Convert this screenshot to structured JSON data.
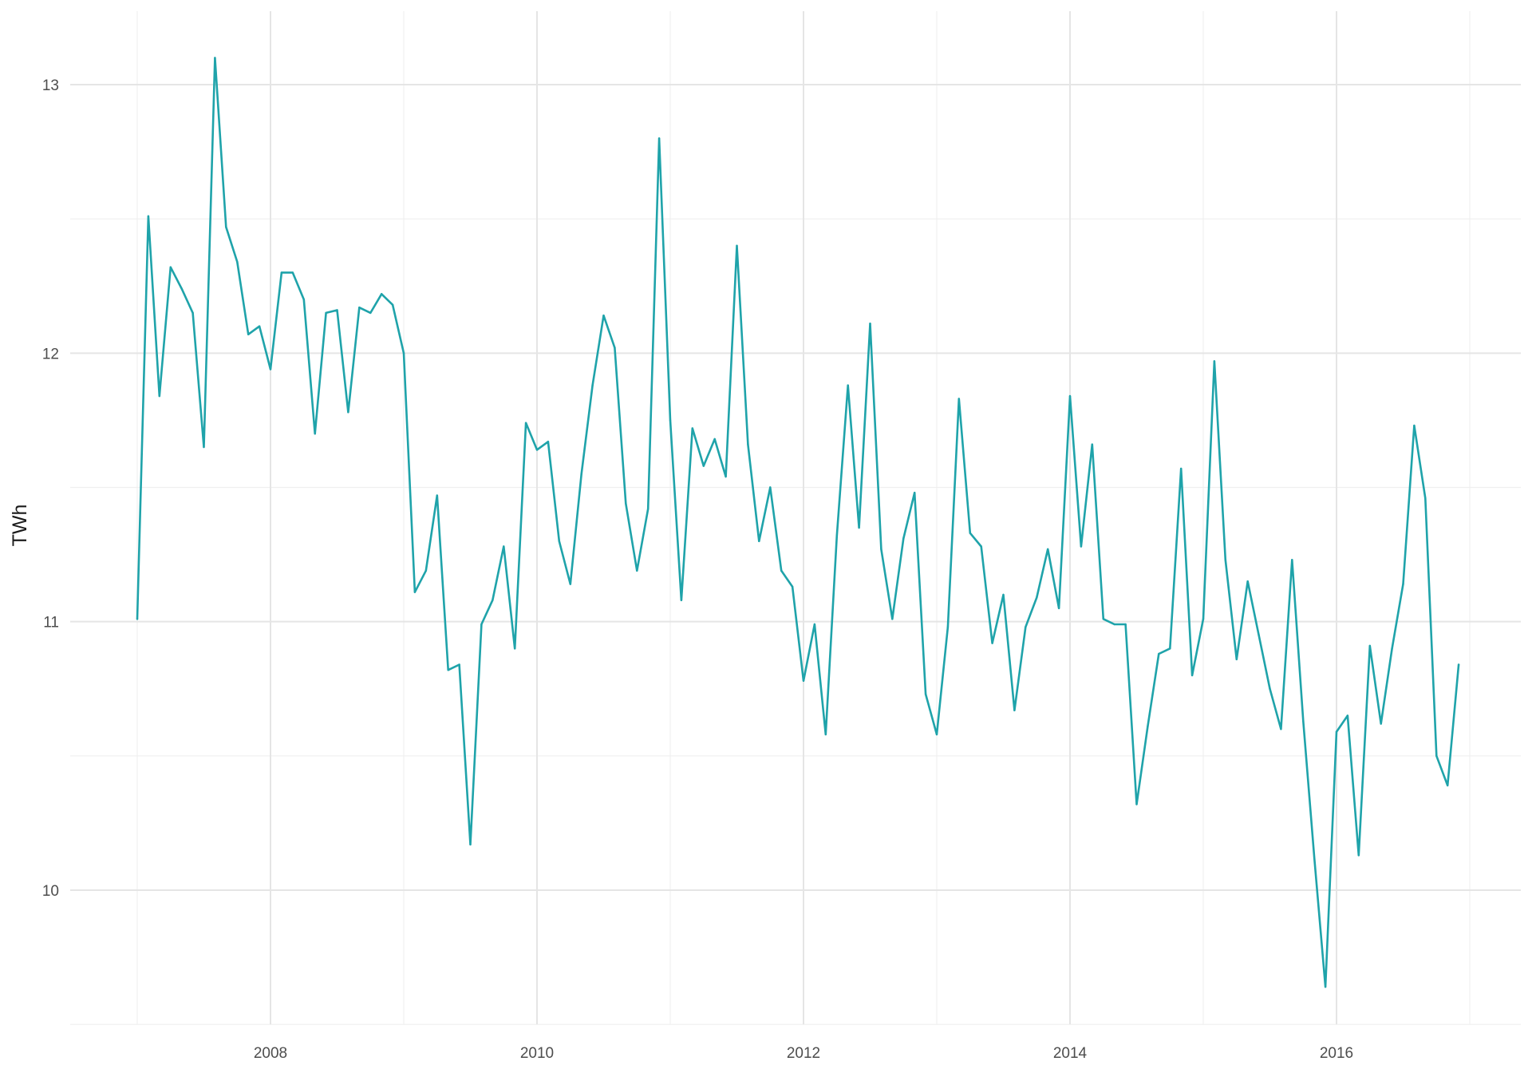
{
  "chart_data": {
    "type": "line",
    "title": "",
    "xlabel": "",
    "ylabel": "TWh",
    "x_ticks": [
      "2008",
      "2010",
      "2012",
      "2014",
      "2016"
    ],
    "y_ticks": [
      10,
      11,
      12,
      13
    ],
    "xlim": [
      "2006-09",
      "2017-04"
    ],
    "ylim": [
      9.5,
      13.2
    ],
    "grid": true,
    "legend": "none",
    "line_color": "#1fa3aa",
    "series": [
      {
        "x": [
          "2007-01",
          "2007-02",
          "2007-03",
          "2007-04",
          "2007-05",
          "2007-06",
          "2007-07",
          "2007-08",
          "2007-09",
          "2007-10",
          "2007-11",
          "2007-12",
          "2008-01",
          "2008-02",
          "2008-03",
          "2008-04",
          "2008-05",
          "2008-06",
          "2008-07",
          "2008-08",
          "2008-09",
          "2008-10",
          "2008-11",
          "2008-12",
          "2009-01",
          "2009-02",
          "2009-03",
          "2009-04",
          "2009-05",
          "2009-06",
          "2009-07",
          "2009-08",
          "2009-09",
          "2009-10",
          "2009-11",
          "2009-12",
          "2010-01",
          "2010-02",
          "2010-03",
          "2010-04",
          "2010-05",
          "2010-06",
          "2010-07",
          "2010-08",
          "2010-09",
          "2010-10",
          "2010-11",
          "2010-12",
          "2011-01",
          "2011-02",
          "2011-03",
          "2011-04",
          "2011-05",
          "2011-06",
          "2011-07",
          "2011-08",
          "2011-09",
          "2011-10",
          "2011-11",
          "2011-12",
          "2012-01",
          "2012-02",
          "2012-03",
          "2012-04",
          "2012-05",
          "2012-06",
          "2012-07",
          "2012-08",
          "2012-09",
          "2012-10",
          "2012-11",
          "2012-12",
          "2013-01",
          "2013-02",
          "2013-03",
          "2013-04",
          "2013-05",
          "2013-06",
          "2013-07",
          "2013-08",
          "2013-09",
          "2013-10",
          "2013-11",
          "2013-12",
          "2014-01",
          "2014-02",
          "2014-03",
          "2014-04",
          "2014-05",
          "2014-06",
          "2014-07",
          "2014-08",
          "2014-09",
          "2014-10",
          "2014-11",
          "2014-12",
          "2015-01",
          "2015-02",
          "2015-03",
          "2015-04",
          "2015-05",
          "2015-06",
          "2015-07",
          "2015-08",
          "2015-09",
          "2015-10",
          "2015-11",
          "2015-12",
          "2016-01",
          "2016-02",
          "2016-03",
          "2016-04",
          "2016-05",
          "2016-06",
          "2016-07",
          "2016-08",
          "2016-09",
          "2016-10",
          "2016-11",
          "2016-12"
        ],
        "values": [
          11.01,
          12.51,
          11.84,
          12.32,
          12.24,
          12.15,
          11.65,
          13.1,
          12.47,
          12.34,
          12.07,
          12.1,
          11.94,
          12.3,
          12.3,
          12.2,
          11.7,
          12.15,
          12.16,
          11.78,
          12.17,
          12.15,
          12.22,
          12.18,
          12.0,
          11.11,
          11.19,
          11.47,
          10.82,
          10.84,
          10.17,
          10.99,
          11.08,
          11.28,
          10.9,
          11.74,
          11.64,
          11.67,
          11.3,
          11.14,
          11.55,
          11.88,
          12.14,
          12.02,
          11.44,
          11.19,
          11.42,
          12.8,
          11.75,
          11.08,
          11.72,
          11.58,
          11.68,
          11.54,
          12.4,
          11.66,
          11.3,
          11.5,
          11.19,
          11.13,
          10.78,
          10.99,
          10.58,
          11.32,
          11.88,
          11.35,
          12.11,
          11.27,
          11.01,
          11.31,
          11.48,
          10.73,
          10.58,
          10.98,
          11.83,
          11.33,
          11.28,
          10.92,
          11.1,
          10.67,
          10.98,
          11.09,
          11.27,
          11.05,
          11.84,
          11.28,
          11.66,
          11.01,
          10.99,
          10.99,
          10.32,
          10.61,
          10.88,
          10.9,
          11.57,
          10.8,
          11.01,
          11.97,
          11.23,
          10.86,
          11.15,
          10.95,
          10.75,
          10.6,
          11.23,
          10.63,
          10.12,
          9.64,
          10.59,
          10.65,
          10.13,
          10.91,
          10.62,
          10.9,
          11.14,
          11.73,
          11.46,
          10.5,
          10.39,
          10.84
        ]
      }
    ]
  }
}
